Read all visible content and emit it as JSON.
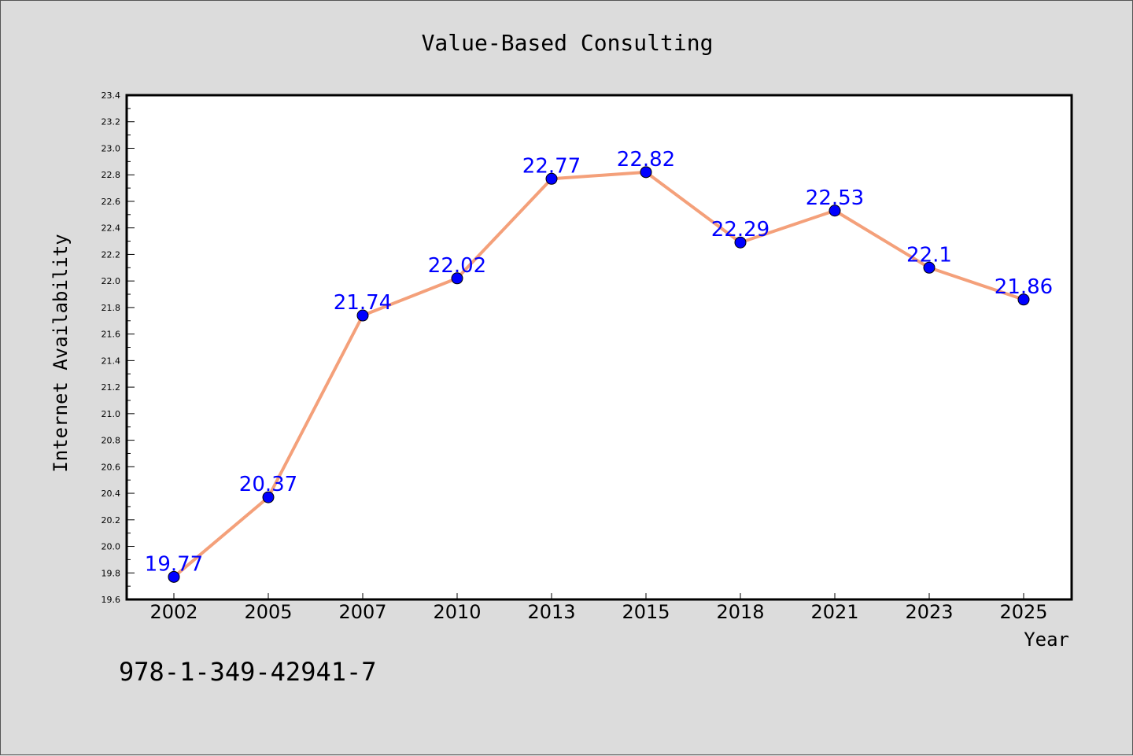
{
  "chart_data": {
    "type": "line",
    "title": "Value-Based Consulting",
    "xlabel": "Year",
    "ylabel": "Internet Availability",
    "categories": [
      "2002",
      "2005",
      "2007",
      "2010",
      "2013",
      "2015",
      "2018",
      "2021",
      "2023",
      "2025"
    ],
    "values": [
      19.77,
      20.37,
      21.74,
      22.02,
      22.77,
      22.82,
      22.29,
      22.53,
      22.1,
      21.86
    ],
    "data_labels": [
      "19.77",
      "20.37",
      "21.74",
      "22.02",
      "22.77",
      "22.82",
      "22.29",
      "22.53",
      "22.1",
      "21.86"
    ],
    "ylim": [
      19.6,
      23.4
    ],
    "yticks": [
      "19.6",
      "19.8",
      "20.0",
      "20.2",
      "20.4",
      "20.6",
      "20.8",
      "21.0",
      "21.2",
      "21.4",
      "21.6",
      "21.8",
      "22.0",
      "22.2",
      "22.4",
      "22.6",
      "22.8",
      "23.0",
      "23.2",
      "23.4"
    ],
    "grid": false,
    "line_color": "#f4a07a",
    "marker_color": "#0000ff",
    "label_color": "#0000ff"
  },
  "footnote": "978-1-349-42941-7"
}
